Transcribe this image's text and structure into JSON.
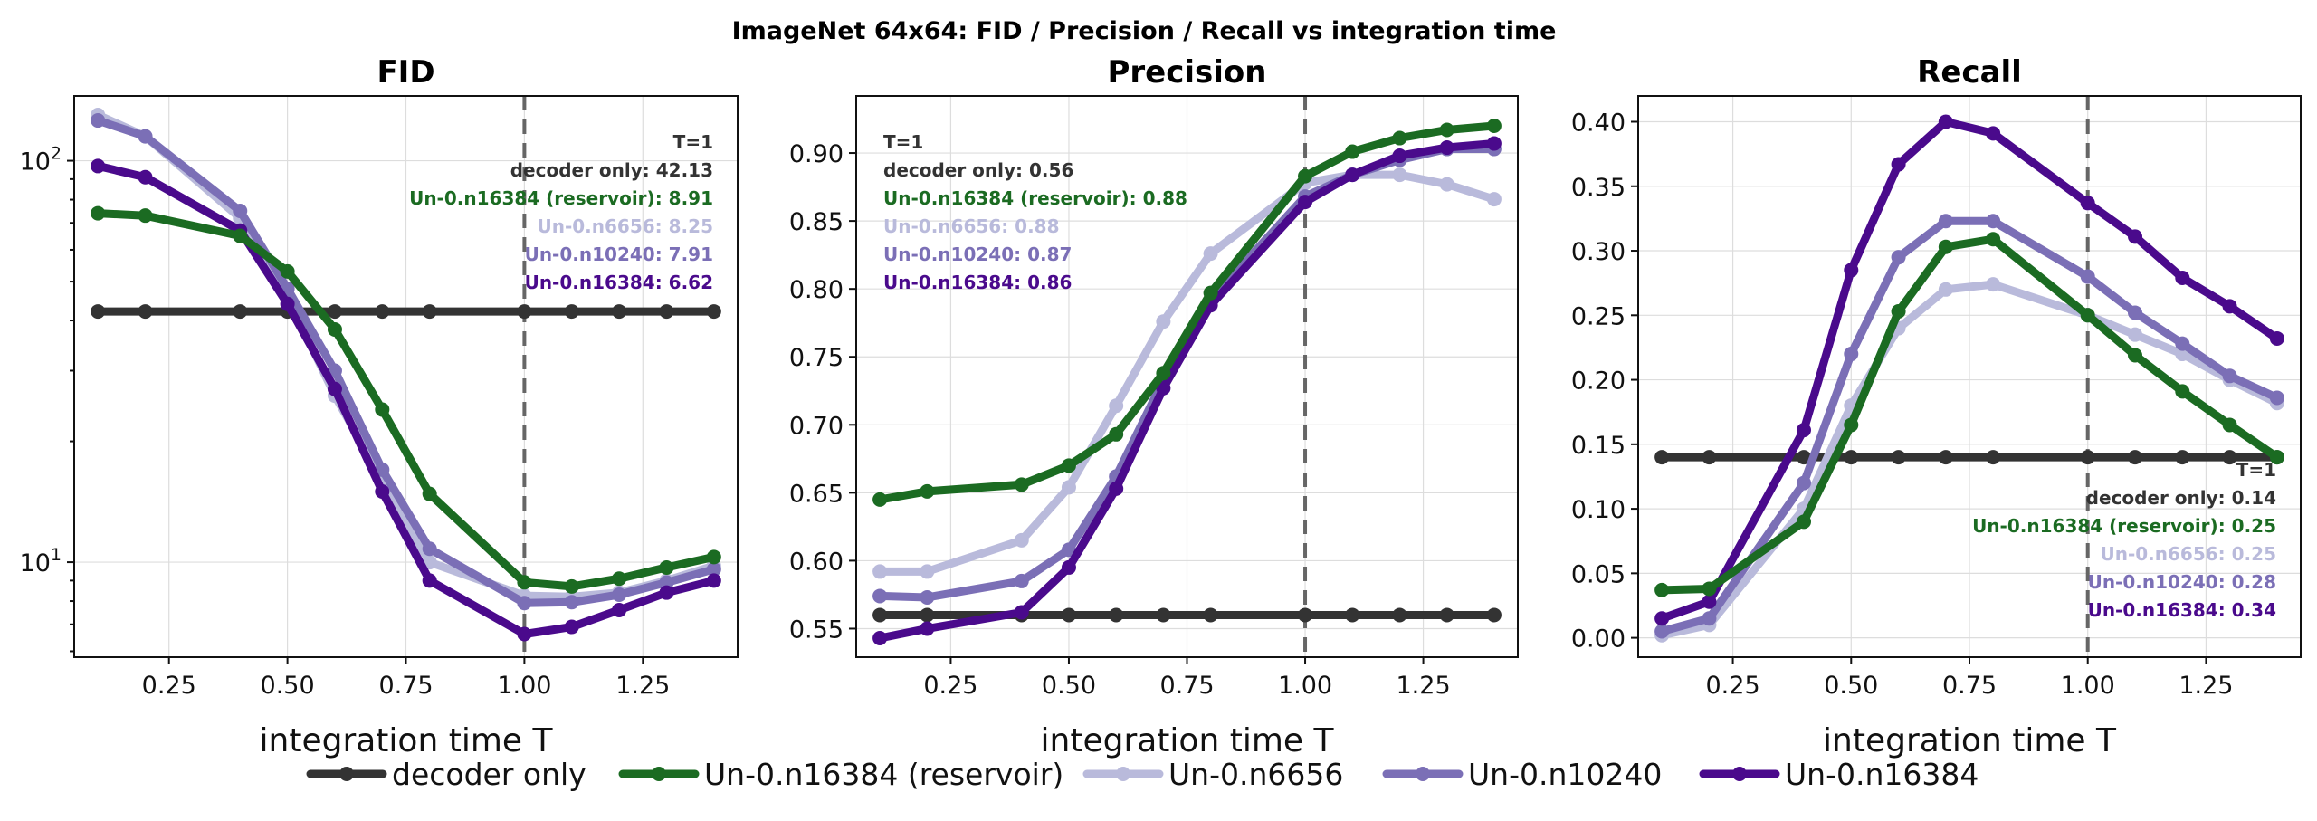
{
  "suptitle": "ImageNet 64x64: FID / Precision / Recall vs integration time",
  "colors": {
    "decoder": "#333333",
    "reservoir": "#1b6b22",
    "n6656": "#b9badb",
    "n10240": "#7b6fb6",
    "n16384": "#4a0a8c"
  },
  "legend": [
    {
      "label": "decoder only",
      "color": "#333333"
    },
    {
      "label": "Un-0.n16384 (reservoir)",
      "color": "#1b6b22"
    },
    {
      "label": "Un-0.n6656",
      "color": "#b9badb"
    },
    {
      "label": "Un-0.n10240",
      "color": "#7b6fb6"
    },
    {
      "label": "Un-0.n16384",
      "color": "#4a0a8c"
    }
  ],
  "chart_data": [
    {
      "type": "line",
      "title": "FID",
      "xlabel": "integration time T",
      "ylabel": "",
      "yscale": "log",
      "xlim": [
        0.05,
        1.45
      ],
      "ylim": [
        5.8,
        145
      ],
      "x_ticks": [
        "0.25",
        "0.50",
        "0.75",
        "1.00",
        "1.25"
      ],
      "y_ticks": [
        {
          "value": 10,
          "base": "10",
          "exp": "1"
        },
        {
          "value": 100,
          "base": "10",
          "exp": "2"
        }
      ],
      "vline": 1.0,
      "grid": true,
      "x": [
        0.1,
        0.2,
        0.4,
        0.5,
        0.6,
        0.7,
        0.8,
        1.0,
        1.1,
        1.2,
        1.3,
        1.4
      ],
      "series": [
        {
          "name": "decoder only",
          "color": "#333333",
          "values": [
            42.13,
            42.13,
            42.13,
            42.13,
            42.13,
            42.13,
            42.13,
            42.13,
            42.13,
            42.13,
            42.13,
            42.13
          ]
        },
        {
          "name": "Un-0.n6656",
          "color": "#b9badb",
          "values": [
            130,
            115,
            72,
            46,
            26,
            16,
            10,
            8.25,
            8.2,
            8.4,
            9.0,
            9.8
          ]
        },
        {
          "name": "Un-0.n10240",
          "color": "#7b6fb6",
          "values": [
            126,
            115,
            75,
            48,
            30,
            17,
            10.8,
            7.91,
            7.95,
            8.3,
            8.9,
            9.6
          ]
        },
        {
          "name": "Un-0.n16384",
          "color": "#4a0a8c",
          "values": [
            97,
            91,
            67,
            44,
            27,
            15,
            9.0,
            6.62,
            6.9,
            7.6,
            8.4,
            9.0
          ]
        },
        {
          "name": "Un-0.n16384 (reservoir)",
          "color": "#1b6b22",
          "values": [
            74,
            73,
            65,
            53,
            38,
            24,
            14.8,
            8.91,
            8.7,
            9.1,
            9.7,
            10.3
          ]
        }
      ],
      "annotation": {
        "position": "top-right",
        "lines": [
          {
            "text": "T=1",
            "color": "#333333"
          },
          {
            "text": "decoder only: 42.13",
            "color": "#333333"
          },
          {
            "text": "Un-0.n16384 (reservoir): 8.91",
            "color": "#1b6b22"
          },
          {
            "text": "Un-0.n6656: 8.25",
            "color": "#b9badb"
          },
          {
            "text": "Un-0.n10240: 7.91",
            "color": "#7b6fb6"
          },
          {
            "text": "Un-0.n16384: 6.62",
            "color": "#4a0a8c"
          }
        ]
      }
    },
    {
      "type": "line",
      "title": "Precision",
      "xlabel": "integration time T",
      "ylabel": "",
      "yscale": "linear",
      "xlim": [
        0.05,
        1.45
      ],
      "ylim": [
        0.529,
        0.942
      ],
      "x_ticks": [
        "0.25",
        "0.50",
        "0.75",
        "1.00",
        "1.25"
      ],
      "y_ticks": [
        "0.55",
        "0.60",
        "0.65",
        "0.70",
        "0.75",
        "0.80",
        "0.85",
        "0.90"
      ],
      "vline": 1.0,
      "grid": true,
      "x": [
        0.1,
        0.2,
        0.4,
        0.5,
        0.6,
        0.7,
        0.8,
        1.0,
        1.1,
        1.2,
        1.3,
        1.4
      ],
      "series": [
        {
          "name": "decoder only",
          "color": "#333333",
          "values": [
            0.56,
            0.56,
            0.56,
            0.56,
            0.56,
            0.56,
            0.56,
            0.56,
            0.56,
            0.56,
            0.56,
            0.56
          ]
        },
        {
          "name": "Un-0.n6656",
          "color": "#b9badb",
          "values": [
            0.592,
            0.592,
            0.615,
            0.654,
            0.714,
            0.776,
            0.826,
            0.878,
            0.884,
            0.884,
            0.877,
            0.866
          ]
        },
        {
          "name": "Un-0.n10240",
          "color": "#7b6fb6",
          "values": [
            0.574,
            0.573,
            0.585,
            0.608,
            0.662,
            0.733,
            0.792,
            0.868,
            0.884,
            0.895,
            0.903,
            0.903
          ]
        },
        {
          "name": "Un-0.n16384",
          "color": "#4a0a8c",
          "values": [
            0.543,
            0.55,
            0.562,
            0.595,
            0.653,
            0.727,
            0.788,
            0.864,
            0.884,
            0.898,
            0.904,
            0.907
          ]
        },
        {
          "name": "Un-0.n16384 (reservoir)",
          "color": "#1b6b22",
          "values": [
            0.645,
            0.651,
            0.656,
            0.67,
            0.693,
            0.738,
            0.797,
            0.883,
            0.901,
            0.911,
            0.917,
            0.92
          ]
        }
      ],
      "annotation": {
        "position": "top-left",
        "lines": [
          {
            "text": "T=1",
            "color": "#333333"
          },
          {
            "text": "decoder only: 0.56",
            "color": "#333333"
          },
          {
            "text": "Un-0.n16384 (reservoir): 0.88",
            "color": "#1b6b22"
          },
          {
            "text": "Un-0.n6656: 0.88",
            "color": "#b9badb"
          },
          {
            "text": "Un-0.n10240: 0.87",
            "color": "#7b6fb6"
          },
          {
            "text": "Un-0.n16384: 0.86",
            "color": "#4a0a8c"
          }
        ]
      }
    },
    {
      "type": "line",
      "title": "Recall",
      "xlabel": "integration time T",
      "ylabel": "",
      "yscale": "linear",
      "xlim": [
        0.05,
        1.45
      ],
      "ylim": [
        -0.015,
        0.42
      ],
      "x_ticks": [
        "0.25",
        "0.50",
        "0.75",
        "1.00",
        "1.25"
      ],
      "y_ticks": [
        "0.00",
        "0.05",
        "0.10",
        "0.15",
        "0.20",
        "0.25",
        "0.30",
        "0.35",
        "0.40"
      ],
      "vline": 1.0,
      "grid": true,
      "x": [
        0.1,
        0.2,
        0.4,
        0.5,
        0.6,
        0.7,
        0.8,
        1.0,
        1.1,
        1.2,
        1.3,
        1.4
      ],
      "series": [
        {
          "name": "decoder only",
          "color": "#333333",
          "values": [
            0.14,
            0.14,
            0.14,
            0.14,
            0.14,
            0.14,
            0.14,
            0.14,
            0.14,
            0.14,
            0.14,
            0.14
          ]
        },
        {
          "name": "Un-0.n6656",
          "color": "#b9badb",
          "values": [
            0.002,
            0.01,
            0.1,
            0.18,
            0.24,
            0.27,
            0.274,
            0.25,
            0.235,
            0.22,
            0.2,
            0.182
          ]
        },
        {
          "name": "Un-0.n10240",
          "color": "#7b6fb6",
          "values": [
            0.005,
            0.015,
            0.12,
            0.22,
            0.295,
            0.323,
            0.323,
            0.28,
            0.252,
            0.228,
            0.203,
            0.186
          ]
        },
        {
          "name": "Un-0.n16384",
          "color": "#4a0a8c",
          "values": [
            0.015,
            0.028,
            0.161,
            0.285,
            0.367,
            0.4,
            0.391,
            0.337,
            0.311,
            0.279,
            0.257,
            0.232
          ]
        },
        {
          "name": "Un-0.n16384 (reservoir)",
          "color": "#1b6b22",
          "values": [
            0.037,
            0.038,
            0.09,
            0.165,
            0.253,
            0.303,
            0.309,
            0.25,
            0.219,
            0.191,
            0.165,
            0.14
          ]
        }
      ],
      "annotation": {
        "position": "bottom-right",
        "lines": [
          {
            "text": "T=1",
            "color": "#333333"
          },
          {
            "text": "decoder only: 0.14",
            "color": "#333333"
          },
          {
            "text": "Un-0.n16384 (reservoir): 0.25",
            "color": "#1b6b22"
          },
          {
            "text": "Un-0.n6656: 0.25",
            "color": "#b9badb"
          },
          {
            "text": "Un-0.n10240: 0.28",
            "color": "#7b6fb6"
          },
          {
            "text": "Un-0.n16384: 0.34",
            "color": "#4a0a8c"
          }
        ]
      }
    }
  ]
}
